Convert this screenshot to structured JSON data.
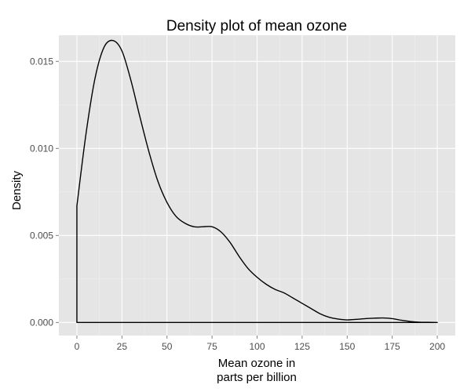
{
  "chart_data": {
    "type": "area",
    "title": "Density plot of mean ozone",
    "xlabel": [
      "Mean ozone in",
      "parts per billion"
    ],
    "ylabel": "Density",
    "xlim": [
      -10,
      210
    ],
    "ylim": [
      -0.00075,
      0.0165
    ],
    "x_ticks": [
      0,
      25,
      50,
      75,
      100,
      125,
      150,
      175,
      200
    ],
    "x_tick_labels": [
      "0",
      "25",
      "50",
      "75",
      "100",
      "125",
      "150",
      "175",
      "200"
    ],
    "y_ticks": [
      0.0,
      0.005,
      0.01,
      0.015
    ],
    "y_tick_labels": [
      "0.000",
      "0.005",
      "0.010",
      "0.015"
    ],
    "grid": true,
    "background": "#e5e5e5",
    "line_color": "#000000",
    "series": [
      {
        "x": [
          0,
          5,
          10,
          15,
          20,
          25,
          30,
          35,
          40,
          45,
          50,
          55,
          60,
          65,
          70,
          75,
          80,
          85,
          90,
          95,
          100,
          105,
          110,
          115,
          120,
          125,
          130,
          135,
          140,
          145,
          150,
          155,
          160,
          165,
          170,
          175,
          180,
          185,
          190,
          195,
          200
        ],
        "y": [
          0.0067,
          0.0108,
          0.014,
          0.0158,
          0.0162,
          0.0156,
          0.0139,
          0.0118,
          0.0098,
          0.0081,
          0.0069,
          0.0061,
          0.0057,
          0.0055,
          0.0055,
          0.0055,
          0.0052,
          0.0046,
          0.0038,
          0.0031,
          0.0026,
          0.0022,
          0.0019,
          0.0017,
          0.0014,
          0.0011,
          0.0008,
          0.0005,
          0.0003,
          0.0002,
          0.00015,
          0.00018,
          0.00022,
          0.00025,
          0.00026,
          0.00022,
          0.00013,
          6e-05,
          2e-05,
          1e-05,
          0.0
        ]
      }
    ]
  }
}
